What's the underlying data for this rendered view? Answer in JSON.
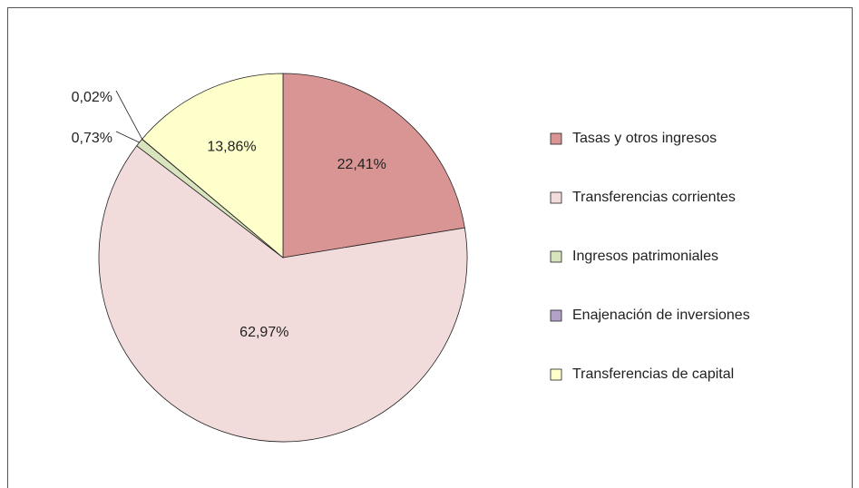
{
  "chart_data": {
    "type": "pie",
    "categories": [
      "Tasas y otros ingresos",
      "Transferencias corrientes",
      "Ingresos patrimoniales",
      "Enajenación de inversiones",
      "Transferencias de capital"
    ],
    "values": [
      22.41,
      62.97,
      0.73,
      0.02,
      13.86
    ],
    "value_labels": [
      "22,41%",
      "62,97%",
      "0,73%",
      "0,02%",
      "13,86%"
    ],
    "colors": [
      "#d99594",
      "#f2dcdb",
      "#d7e4bd",
      "#b3a2c7",
      "#ffffcc"
    ],
    "legend": "right"
  }
}
